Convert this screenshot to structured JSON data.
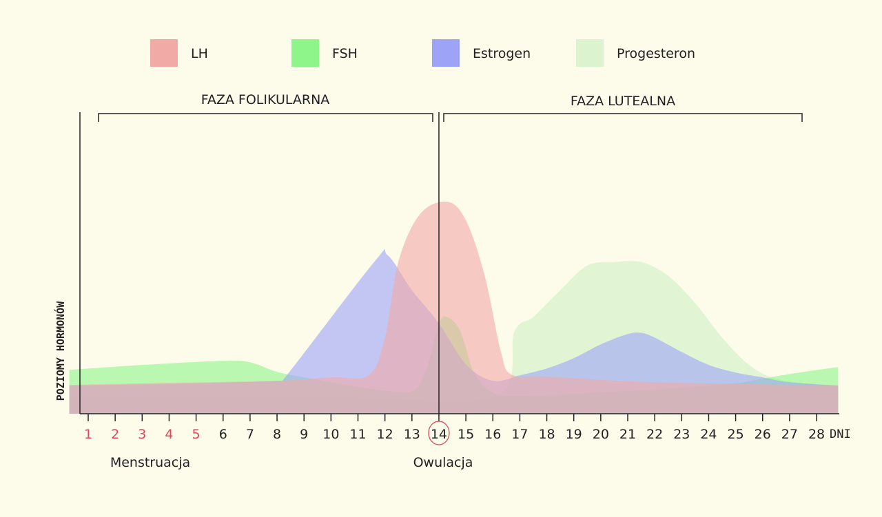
{
  "chart_data": {
    "type": "area",
    "title": "",
    "xlabel": "DNI",
    "ylabel": "POZIOMY HORMONÓW",
    "categories": [
      "1",
      "2",
      "3",
      "4",
      "5",
      "6",
      "7",
      "8",
      "9",
      "10",
      "11",
      "12",
      "13",
      "14",
      "15",
      "16",
      "17",
      "18",
      "19",
      "20",
      "21",
      "22",
      "23",
      "24",
      "25",
      "26",
      "27",
      "28"
    ],
    "menstruation_days": [
      1,
      2,
      3,
      4,
      5
    ],
    "ovulation_day": 14,
    "xlim": [
      0.3,
      28.8
    ],
    "ylim": [
      0,
      105
    ],
    "grid": false,
    "legend_position": "top",
    "annotations": {
      "menstruation": "Menstruacja",
      "ovulation": "Owulacja",
      "phase_follicular": "FAZA FOLIKULARNA",
      "phase_luteal": "FAZA LUTEALNA"
    },
    "series": [
      {
        "name": "LH",
        "color": "#f2aaa6",
        "points": [
          [
            0.3,
            14
          ],
          [
            4,
            15
          ],
          [
            8,
            16
          ],
          [
            10,
            17.7
          ],
          [
            11.4,
            18.7
          ],
          [
            12,
            37
          ],
          [
            12.5,
            74
          ],
          [
            13.3,
            97
          ],
          [
            14.3,
            103
          ],
          [
            15,
            94
          ],
          [
            15.7,
            67
          ],
          [
            16.3,
            30
          ],
          [
            16.7,
            19
          ],
          [
            18,
            18
          ],
          [
            22,
            15.3
          ],
          [
            28.8,
            13.7
          ]
        ]
      },
      {
        "name": "FSH",
        "color": "#8ef58a",
        "points": [
          [
            0.3,
            21.3
          ],
          [
            3,
            23.7
          ],
          [
            6,
            25.7
          ],
          [
            7,
            25
          ],
          [
            8,
            20.3
          ],
          [
            9,
            17.7
          ],
          [
            10,
            15.3
          ],
          [
            11,
            13
          ],
          [
            12,
            11.3
          ],
          [
            13,
            11
          ],
          [
            13.5,
            20
          ],
          [
            14,
            43.7
          ],
          [
            14.3,
            47
          ],
          [
            14.8,
            40
          ],
          [
            15.3,
            20
          ],
          [
            16,
            10.3
          ],
          [
            17,
            8.7
          ],
          [
            20,
            10.3
          ],
          [
            23,
            12.7
          ],
          [
            25,
            14.7
          ],
          [
            26,
            17
          ],
          [
            27,
            19.3
          ],
          [
            28.8,
            22.7
          ]
        ]
      },
      {
        "name": "Estrogen",
        "color": "#9da3f7",
        "points": [
          [
            0.3,
            13.7
          ],
          [
            4,
            14.5
          ],
          [
            8,
            16
          ],
          [
            8.3,
            17.7
          ],
          [
            11.6,
            73.7
          ],
          [
            12.1,
            77
          ],
          [
            13,
            60
          ],
          [
            14,
            44
          ],
          [
            15,
            24
          ],
          [
            16,
            16
          ],
          [
            17,
            18.7
          ],
          [
            18,
            22
          ],
          [
            19,
            27
          ],
          [
            20,
            33.7
          ],
          [
            21,
            38.7
          ],
          [
            21.5,
            39.3
          ],
          [
            22,
            37
          ],
          [
            23,
            30
          ],
          [
            24,
            23.7
          ],
          [
            25,
            20
          ],
          [
            26,
            17.7
          ],
          [
            27,
            15.3
          ],
          [
            28.8,
            13.7
          ]
        ]
      },
      {
        "name": "Progesteron",
        "color": "#dcf3d0",
        "points": [
          [
            0.3,
            8
          ],
          [
            10,
            8
          ],
          [
            16,
            8
          ],
          [
            16.8,
            40
          ],
          [
            17.5,
            47
          ],
          [
            18.5,
            60
          ],
          [
            19.5,
            72
          ],
          [
            20.5,
            73.7
          ],
          [
            21.5,
            73.7
          ],
          [
            22.5,
            67
          ],
          [
            23.5,
            53.7
          ],
          [
            24.5,
            37
          ],
          [
            25.5,
            23.7
          ],
          [
            26.5,
            17
          ],
          [
            28,
            14.3
          ],
          [
            28.8,
            13.7
          ]
        ]
      }
    ]
  }
}
